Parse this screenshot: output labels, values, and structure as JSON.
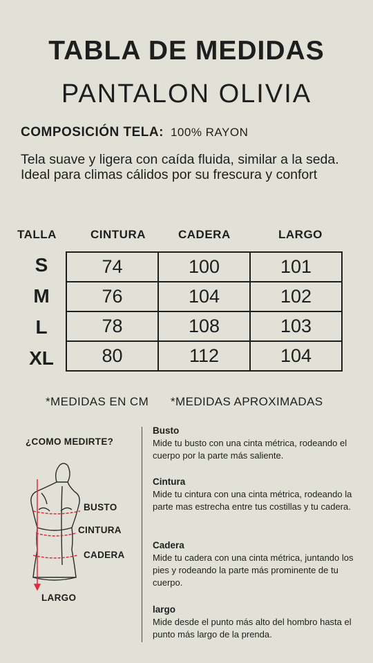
{
  "header": {
    "title": "TABLA DE MEDIDAS",
    "subtitle": "PANTALON OLIVIA"
  },
  "composition": {
    "label": "COMPOSICIÓN TELA:",
    "value": "100% RAYON"
  },
  "description": "Tela suave y ligera con caída fluida, similar a la seda. Ideal para climas cálidos por su frescura y confort",
  "size_table": {
    "headers": [
      "TALLA",
      "CINTURA",
      "CADERA",
      "LARGO"
    ],
    "rows": [
      {
        "talla": "S",
        "cintura": "74",
        "cadera": "100",
        "largo": "101"
      },
      {
        "talla": "M",
        "cintura": "76",
        "cadera": "104",
        "largo": "102"
      },
      {
        "talla": "L",
        "cintura": "78",
        "cadera": "108",
        "largo": "103"
      },
      {
        "talla": "XL",
        "cintura": "80",
        "cadera": "112",
        "largo": "104"
      }
    ]
  },
  "notes": {
    "units": "*MEDIDAS EN CM",
    "approx": "*MEDIDAS APROXIMADAS"
  },
  "how_to": {
    "title": "¿COMO MEDIRTE?",
    "figure_labels": {
      "busto": "BUSTO",
      "cintura": "CINTURA",
      "cadera": "CADERA",
      "largo": "LARGO"
    },
    "items": [
      {
        "title": "Busto",
        "text": "Mide tu busto con una cinta métrica, rodeando el cuerpo por la parte más saliente."
      },
      {
        "title": "Cintura",
        "text": "Mide tu cintura con una cinta métrica, rodeando la parte mas estrecha entre tus costillas y tu cadera."
      },
      {
        "title": "Cadera",
        "text": "Mide tu cadera con una cinta métrica, juntando los pies y rodeando la parte más prominente de tu cuerpo."
      },
      {
        "title": "largo",
        "text": "Mide desde el punto más alto del hombro hasta el punto más largo de la prenda."
      }
    ]
  },
  "colors": {
    "background": "#e1e1d7",
    "text": "#1e1e1e",
    "measure_lines": "#e02b3c"
  }
}
